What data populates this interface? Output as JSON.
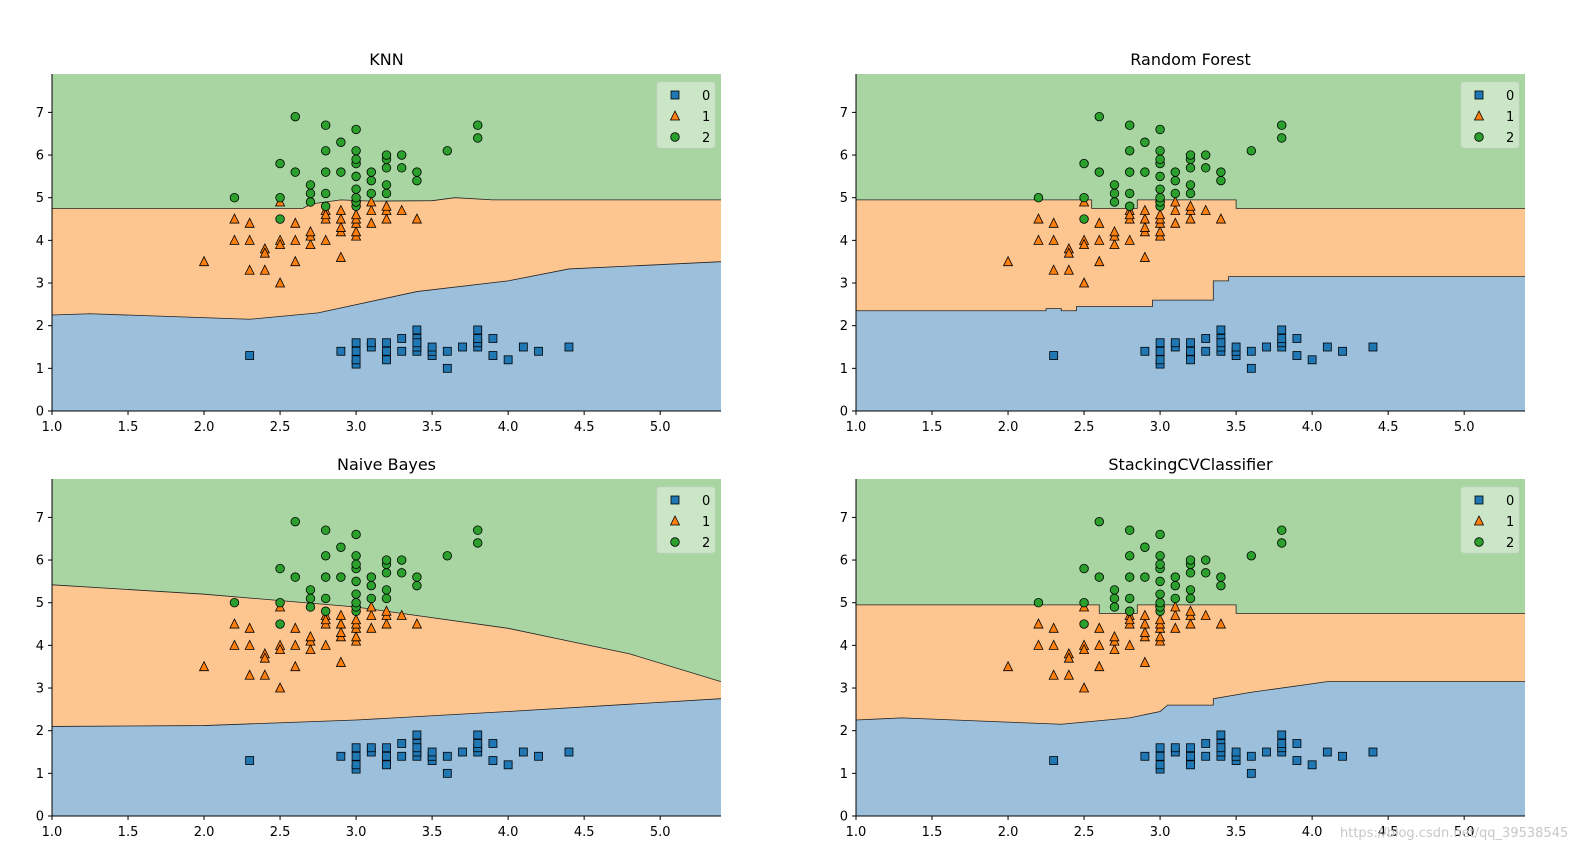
{
  "figure": {
    "watermark": "https://blog.csdn.net/qq_39538545"
  },
  "colors": {
    "class0_region": "#9cbfdc",
    "class1_region": "#fdc58f",
    "class2_region": "#a8d5a2",
    "class0_marker": "#1f77b4",
    "class1_marker": "#ff7f0e",
    "class2_marker": "#2ca02c"
  },
  "samples": {
    "class0": [
      [
        2.3,
        1.3
      ],
      [
        2.9,
        1.4
      ],
      [
        3.0,
        1.1
      ],
      [
        3.0,
        1.4
      ],
      [
        3.0,
        1.2
      ],
      [
        3.0,
        1.6
      ],
      [
        3.1,
        1.5
      ],
      [
        3.1,
        1.6
      ],
      [
        3.2,
        1.3
      ],
      [
        3.2,
        1.2
      ],
      [
        3.2,
        1.4
      ],
      [
        3.2,
        1.6
      ],
      [
        3.3,
        1.4
      ],
      [
        3.3,
        1.7
      ],
      [
        3.4,
        1.4
      ],
      [
        3.4,
        1.5
      ],
      [
        3.4,
        1.9
      ],
      [
        3.4,
        1.7
      ],
      [
        3.4,
        1.6
      ],
      [
        3.5,
        1.3
      ],
      [
        3.5,
        1.4
      ],
      [
        3.5,
        1.5
      ],
      [
        3.6,
        1.0
      ],
      [
        3.6,
        1.4
      ],
      [
        3.7,
        1.5
      ],
      [
        3.8,
        1.5
      ],
      [
        3.8,
        1.6
      ],
      [
        3.8,
        1.9
      ],
      [
        3.8,
        1.7
      ],
      [
        3.9,
        1.7
      ],
      [
        3.9,
        1.3
      ],
      [
        4.0,
        1.2
      ],
      [
        4.1,
        1.5
      ],
      [
        4.2,
        1.4
      ],
      [
        4.4,
        1.5
      ]
    ],
    "class1": [
      [
        2.0,
        3.5
      ],
      [
        2.2,
        4.0
      ],
      [
        2.2,
        4.5
      ],
      [
        2.3,
        4.0
      ],
      [
        2.3,
        3.3
      ],
      [
        2.3,
        4.4
      ],
      [
        2.4,
        3.3
      ],
      [
        2.4,
        3.8
      ],
      [
        2.4,
        3.7
      ],
      [
        2.5,
        3.0
      ],
      [
        2.5,
        4.0
      ],
      [
        2.5,
        3.9
      ],
      [
        2.5,
        4.9
      ],
      [
        2.6,
        3.5
      ],
      [
        2.6,
        4.0
      ],
      [
        2.6,
        4.4
      ],
      [
        2.7,
        3.9
      ],
      [
        2.7,
        4.1
      ],
      [
        2.7,
        4.2
      ],
      [
        2.8,
        4.0
      ],
      [
        2.8,
        4.5
      ],
      [
        2.8,
        4.7
      ],
      [
        2.8,
        4.6
      ],
      [
        2.9,
        3.6
      ],
      [
        2.9,
        4.2
      ],
      [
        2.9,
        4.3
      ],
      [
        2.9,
        4.5
      ],
      [
        2.9,
        4.7
      ],
      [
        3.0,
        4.1
      ],
      [
        3.0,
        4.2
      ],
      [
        3.0,
        4.4
      ],
      [
        3.0,
        4.5
      ],
      [
        3.0,
        4.6
      ],
      [
        3.0,
        5.0
      ],
      [
        3.1,
        4.4
      ],
      [
        3.1,
        4.7
      ],
      [
        3.1,
        4.9
      ],
      [
        3.2,
        4.5
      ],
      [
        3.2,
        4.7
      ],
      [
        3.2,
        4.8
      ],
      [
        3.3,
        4.7
      ],
      [
        3.4,
        4.5
      ]
    ],
    "class2": [
      [
        2.2,
        5.0
      ],
      [
        2.5,
        4.5
      ],
      [
        2.5,
        5.0
      ],
      [
        2.5,
        5.8
      ],
      [
        2.6,
        6.9
      ],
      [
        2.6,
        5.6
      ],
      [
        2.7,
        4.9
      ],
      [
        2.7,
        5.1
      ],
      [
        2.7,
        5.3
      ],
      [
        2.8,
        4.8
      ],
      [
        2.8,
        5.1
      ],
      [
        2.8,
        5.6
      ],
      [
        2.8,
        6.1
      ],
      [
        2.8,
        6.7
      ],
      [
        2.9,
        5.6
      ],
      [
        2.9,
        6.3
      ],
      [
        3.0,
        4.8
      ],
      [
        3.0,
        4.9
      ],
      [
        3.0,
        5.0
      ],
      [
        3.0,
        5.2
      ],
      [
        3.0,
        5.5
      ],
      [
        3.0,
        5.8
      ],
      [
        3.0,
        5.9
      ],
      [
        3.0,
        6.1
      ],
      [
        3.0,
        6.6
      ],
      [
        3.1,
        5.1
      ],
      [
        3.1,
        5.4
      ],
      [
        3.1,
        5.6
      ],
      [
        3.2,
        5.1
      ],
      [
        3.2,
        5.3
      ],
      [
        3.2,
        5.7
      ],
      [
        3.2,
        5.9
      ],
      [
        3.2,
        6.0
      ],
      [
        3.3,
        5.7
      ],
      [
        3.3,
        6.0
      ],
      [
        3.4,
        5.4
      ],
      [
        3.4,
        5.6
      ],
      [
        3.6,
        6.1
      ],
      [
        3.8,
        6.4
      ],
      [
        3.8,
        6.7
      ]
    ]
  },
  "chart_data": [
    {
      "type": "scatter",
      "title": "KNN",
      "xlim": [
        1.0,
        5.4
      ],
      "ylim": [
        0,
        7.9
      ],
      "xticks": [
        "1.0",
        "1.5",
        "2.0",
        "2.5",
        "3.0",
        "3.5",
        "4.0",
        "4.5",
        "5.0"
      ],
      "yticks": [
        "0",
        "1",
        "2",
        "3",
        "4",
        "5",
        "6",
        "7"
      ],
      "legend": {
        "position": "top-right",
        "labels": [
          "0",
          "1",
          "2"
        ]
      },
      "boundary_0_1": [
        [
          1.0,
          2.25
        ],
        [
          1.25,
          2.28
        ],
        [
          2.3,
          2.15
        ],
        [
          2.75,
          2.3
        ],
        [
          3.4,
          2.8
        ],
        [
          4.0,
          3.05
        ],
        [
          4.4,
          3.33
        ],
        [
          5.4,
          3.5
        ]
      ],
      "boundary_1_2": [
        [
          1.0,
          4.75
        ],
        [
          2.5,
          4.75
        ],
        [
          2.65,
          4.75
        ],
        [
          2.7,
          4.85
        ],
        [
          2.9,
          4.95
        ],
        [
          3.1,
          4.92
        ],
        [
          3.5,
          4.93
        ],
        [
          3.65,
          5.0
        ],
        [
          3.9,
          4.95
        ],
        [
          5.4,
          4.95
        ]
      ]
    },
    {
      "type": "scatter",
      "title": "Random Forest",
      "xlim": [
        1.0,
        5.4
      ],
      "ylim": [
        0,
        7.9
      ],
      "xticks": [
        "1.0",
        "1.5",
        "2.0",
        "2.5",
        "3.0",
        "3.5",
        "4.0",
        "4.5",
        "5.0"
      ],
      "yticks": [
        "0",
        "1",
        "2",
        "3",
        "4",
        "5",
        "6",
        "7"
      ],
      "legend": {
        "position": "top-right",
        "labels": [
          "0",
          "1",
          "2"
        ]
      },
      "boundary_0_1": [
        [
          1.0,
          2.35
        ],
        [
          2.25,
          2.35
        ],
        [
          2.25,
          2.4
        ],
        [
          2.35,
          2.4
        ],
        [
          2.35,
          2.35
        ],
        [
          2.45,
          2.35
        ],
        [
          2.45,
          2.45
        ],
        [
          2.95,
          2.45
        ],
        [
          2.95,
          2.6
        ],
        [
          3.35,
          2.6
        ],
        [
          3.35,
          3.05
        ],
        [
          3.45,
          3.05
        ],
        [
          3.45,
          3.15
        ],
        [
          5.4,
          3.15
        ]
      ],
      "boundary_1_2": [
        [
          1.0,
          4.95
        ],
        [
          2.55,
          4.95
        ],
        [
          2.55,
          4.75
        ],
        [
          2.85,
          4.75
        ],
        [
          2.85,
          4.95
        ],
        [
          3.5,
          4.95
        ],
        [
          3.5,
          4.75
        ],
        [
          5.4,
          4.75
        ]
      ]
    },
    {
      "type": "scatter",
      "title": "Naive Bayes",
      "xlim": [
        1.0,
        5.4
      ],
      "ylim": [
        0,
        7.9
      ],
      "xticks": [
        "1.0",
        "1.5",
        "2.0",
        "2.5",
        "3.0",
        "3.5",
        "4.0",
        "4.5",
        "5.0"
      ],
      "yticks": [
        "0",
        "1",
        "2",
        "3",
        "4",
        "5",
        "6",
        "7"
      ],
      "legend": {
        "position": "top-right",
        "labels": [
          "0",
          "1",
          "2"
        ]
      },
      "boundary_0_1": [
        [
          1.0,
          2.1
        ],
        [
          2.0,
          2.12
        ],
        [
          3.0,
          2.25
        ],
        [
          4.0,
          2.45
        ],
        [
          5.4,
          2.75
        ]
      ],
      "boundary_1_2": [
        [
          1.0,
          5.42
        ],
        [
          2.0,
          5.2
        ],
        [
          3.0,
          4.9
        ],
        [
          4.0,
          4.4
        ],
        [
          4.8,
          3.8
        ],
        [
          5.4,
          3.15
        ]
      ]
    },
    {
      "type": "scatter",
      "title": "StackingCVClassifier",
      "xlim": [
        1.0,
        5.4
      ],
      "ylim": [
        0,
        7.9
      ],
      "xticks": [
        "1.0",
        "1.5",
        "2.0",
        "2.5",
        "3.0",
        "3.5",
        "4.0",
        "4.5",
        "5.0"
      ],
      "yticks": [
        "0",
        "1",
        "2",
        "3",
        "4",
        "5",
        "6",
        "7"
      ],
      "legend": {
        "position": "top-right",
        "labels": [
          "0",
          "1",
          "2"
        ]
      },
      "boundary_0_1": [
        [
          1.0,
          2.25
        ],
        [
          1.3,
          2.3
        ],
        [
          2.35,
          2.15
        ],
        [
          2.8,
          2.3
        ],
        [
          3.0,
          2.45
        ],
        [
          3.05,
          2.6
        ],
        [
          3.35,
          2.6
        ],
        [
          3.35,
          2.75
        ],
        [
          3.6,
          2.9
        ],
        [
          4.1,
          3.15
        ],
        [
          5.4,
          3.15
        ]
      ],
      "boundary_1_2": [
        [
          1.0,
          4.95
        ],
        [
          2.6,
          4.95
        ],
        [
          2.6,
          4.75
        ],
        [
          2.85,
          4.75
        ],
        [
          2.85,
          4.95
        ],
        [
          3.5,
          4.95
        ],
        [
          3.5,
          4.75
        ],
        [
          5.4,
          4.75
        ]
      ]
    }
  ]
}
